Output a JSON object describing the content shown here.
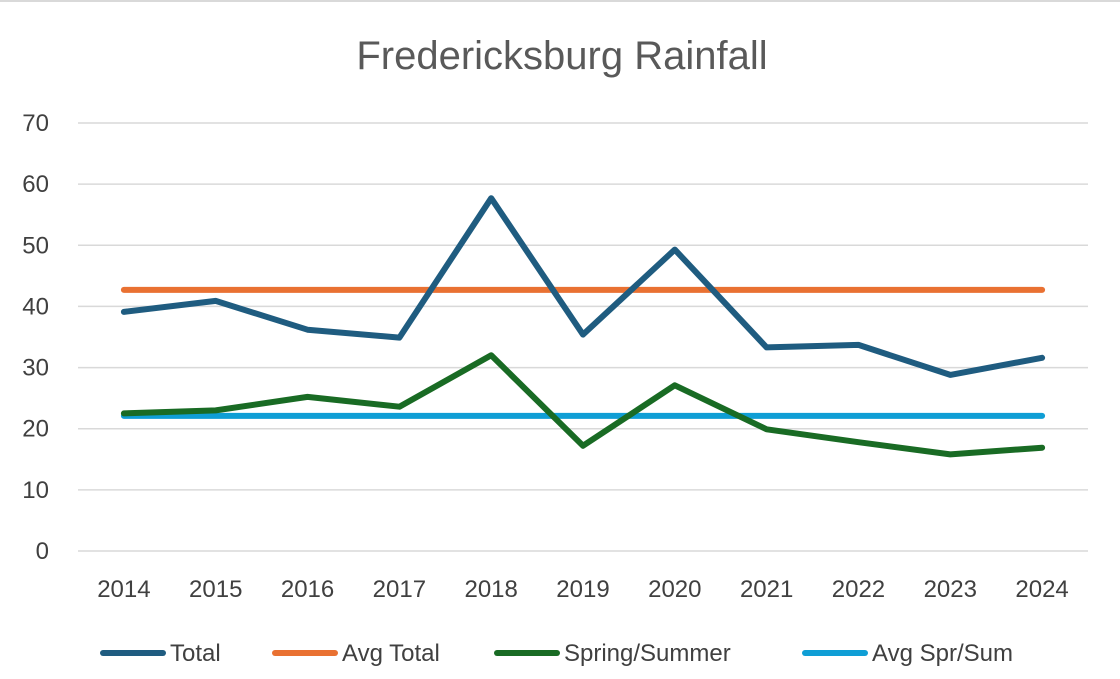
{
  "chart_data": {
    "type": "line",
    "title": "Fredericksburg Rainfall",
    "categories": [
      "2014",
      "2015",
      "2016",
      "2017",
      "2018",
      "2019",
      "2020",
      "2021",
      "2022",
      "2023",
      "2024"
    ],
    "ylim": [
      0,
      70
    ],
    "yticks": [
      0,
      10,
      20,
      30,
      40,
      50,
      60,
      70
    ],
    "grid": true,
    "legend": "bottom",
    "series": [
      {
        "name": "Total",
        "color": "#1f5c80",
        "values": [
          39.1,
          40.9,
          36.2,
          34.9,
          57.7,
          35.4,
          49.3,
          33.3,
          33.7,
          28.8,
          31.6
        ]
      },
      {
        "name": "Avg Total",
        "color": "#e97132",
        "values": [
          42.7,
          42.7,
          42.7,
          42.7,
          42.7,
          42.7,
          42.7,
          42.7,
          42.7,
          42.7,
          42.7
        ]
      },
      {
        "name": "Spring/Summer",
        "color": "#196b24",
        "values": [
          22.5,
          23.0,
          25.2,
          23.6,
          32.0,
          17.2,
          27.1,
          19.9,
          17.8,
          15.8,
          16.9
        ]
      },
      {
        "name": "Avg Spr/Sum",
        "color": "#0f9ed5",
        "values": [
          22.1,
          22.1,
          22.1,
          22.1,
          22.1,
          22.1,
          22.1,
          22.1,
          22.1,
          22.1,
          22.1
        ]
      }
    ]
  }
}
